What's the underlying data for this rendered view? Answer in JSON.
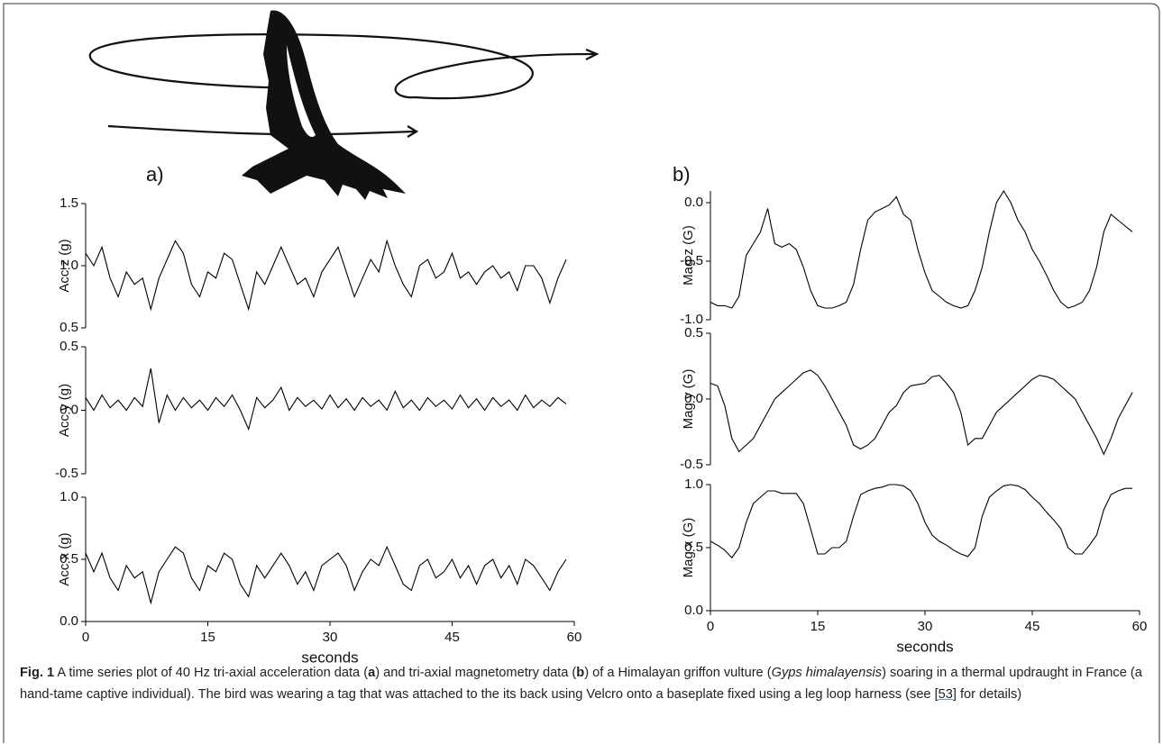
{
  "panel_labels": [
    "a)",
    "b)"
  ],
  "caption": [
    "Fig. 1",
    " A time series plot of 40 Hz tri-axial acceleration data (",
    "a",
    ") and tri-axial magnetometry data (",
    "b",
    ") of a Himalayan griffon vulture (",
    "Gyps himalayensis",
    ") soaring in a thermal updraught in France (a hand-tame captive individual). The bird was wearing a tag that was attached to the its back using Velcro onto a baseplate fixed using a leg loop harness (see ",
    "[53]",
    " for details)"
  ],
  "chart_data": [
    {
      "type": "line",
      "ylabel": "Acc z (g)",
      "color": "#000000",
      "x": [
        0,
        1,
        2,
        3,
        4,
        5,
        6,
        7,
        8,
        9,
        10,
        11,
        12,
        13,
        14,
        15,
        16,
        17,
        18,
        19,
        20,
        21,
        22,
        23,
        24,
        25,
        26,
        27,
        28,
        29,
        30,
        31,
        32,
        33,
        34,
        35,
        36,
        37,
        38,
        39,
        40,
        41,
        42,
        43,
        44,
        45,
        46,
        47,
        48,
        49,
        50,
        51,
        52,
        53,
        54,
        55,
        56,
        57,
        58,
        59
      ],
      "values": [
        1.1,
        1.0,
        1.15,
        0.9,
        0.75,
        0.95,
        0.85,
        0.9,
        0.65,
        0.9,
        1.05,
        1.2,
        1.1,
        0.85,
        0.75,
        0.95,
        0.9,
        1.1,
        1.05,
        0.85,
        0.65,
        0.95,
        0.85,
        1.0,
        1.15,
        1.0,
        0.85,
        0.9,
        0.75,
        0.95,
        1.05,
        1.15,
        0.95,
        0.75,
        0.9,
        1.05,
        0.95,
        1.2,
        1.0,
        0.85,
        0.75,
        1.0,
        1.05,
        0.9,
        0.95,
        1.1,
        0.9,
        0.95,
        0.85,
        0.95,
        1.0,
        0.9,
        0.95,
        0.8,
        1.0,
        1.0,
        0.9,
        0.7,
        0.9,
        1.05
      ],
      "xlim": [
        0,
        60
      ],
      "ylim": [
        0.5,
        1.5
      ],
      "yticks": [
        0.5,
        {
          "value": 1,
          "label": "1.0"
        },
        1.5
      ]
    },
    {
      "type": "line",
      "ylabel": "Acc y (g)",
      "color": "#000000",
      "x": [
        0,
        1,
        2,
        3,
        4,
        5,
        6,
        7,
        8,
        9,
        10,
        11,
        12,
        13,
        14,
        15,
        16,
        17,
        18,
        19,
        20,
        21,
        22,
        23,
        24,
        25,
        26,
        27,
        28,
        29,
        30,
        31,
        32,
        33,
        34,
        35,
        36,
        37,
        38,
        39,
        40,
        41,
        42,
        43,
        44,
        45,
        46,
        47,
        48,
        49,
        50,
        51,
        52,
        53,
        54,
        55,
        56,
        57,
        58,
        59
      ],
      "values": [
        0.1,
        0.0,
        0.12,
        0.02,
        0.08,
        0.0,
        0.1,
        0.03,
        0.33,
        -0.1,
        0.12,
        0.0,
        0.1,
        0.02,
        0.08,
        0.0,
        0.1,
        0.03,
        0.12,
        0.0,
        -0.15,
        0.1,
        0.02,
        0.08,
        0.18,
        0.0,
        0.1,
        0.03,
        0.08,
        0.01,
        0.12,
        0.02,
        0.09,
        0.0,
        0.1,
        0.03,
        0.08,
        0.0,
        0.15,
        0.02,
        0.08,
        0.0,
        0.1,
        0.03,
        0.08,
        0.01,
        0.12,
        0.02,
        0.09,
        0.0,
        0.1,
        0.03,
        0.08,
        0.0,
        0.12,
        0.02,
        0.08,
        0.03,
        0.1,
        0.05
      ],
      "xlim": [
        0,
        60
      ],
      "ylim": [
        -0.5,
        0.5
      ],
      "yticks": [
        -0.5,
        {
          "value": 0,
          "label": "0.0"
        },
        0.5
      ]
    },
    {
      "type": "line",
      "ylabel": "Acc x (g)",
      "xlabel": "seconds",
      "color": "#000000",
      "x": [
        0,
        1,
        2,
        3,
        4,
        5,
        6,
        7,
        8,
        9,
        10,
        11,
        12,
        13,
        14,
        15,
        16,
        17,
        18,
        19,
        20,
        21,
        22,
        23,
        24,
        25,
        26,
        27,
        28,
        29,
        30,
        31,
        32,
        33,
        34,
        35,
        36,
        37,
        38,
        39,
        40,
        41,
        42,
        43,
        44,
        45,
        46,
        47,
        48,
        49,
        50,
        51,
        52,
        53,
        54,
        55,
        56,
        57,
        58,
        59
      ],
      "values": [
        0.55,
        0.4,
        0.55,
        0.35,
        0.25,
        0.45,
        0.35,
        0.4,
        0.15,
        0.4,
        0.5,
        0.6,
        0.55,
        0.35,
        0.25,
        0.45,
        0.4,
        0.55,
        0.5,
        0.3,
        0.2,
        0.45,
        0.35,
        0.45,
        0.55,
        0.45,
        0.3,
        0.4,
        0.25,
        0.45,
        0.5,
        0.55,
        0.45,
        0.25,
        0.4,
        0.5,
        0.45,
        0.6,
        0.45,
        0.3,
        0.25,
        0.45,
        0.5,
        0.35,
        0.4,
        0.5,
        0.35,
        0.45,
        0.3,
        0.45,
        0.5,
        0.35,
        0.45,
        0.3,
        0.5,
        0.45,
        0.35,
        0.25,
        0.4,
        0.5
      ],
      "xlim": [
        0,
        60
      ],
      "xticks": [
        0,
        15,
        30,
        45,
        60
      ],
      "ylim": [
        0,
        1
      ],
      "yticks": [
        {
          "value": 0,
          "label": "0.0"
        },
        0.5,
        {
          "value": 1,
          "label": "1.0"
        }
      ]
    },
    {
      "type": "line",
      "ylabel": "Mag z (G)",
      "color": "#000000",
      "x": [
        0,
        1,
        2,
        3,
        4,
        5,
        6,
        7,
        8,
        9,
        10,
        11,
        12,
        13,
        14,
        15,
        16,
        17,
        18,
        19,
        20,
        21,
        22,
        23,
        24,
        25,
        26,
        27,
        28,
        29,
        30,
        31,
        32,
        33,
        34,
        35,
        36,
        37,
        38,
        39,
        40,
        41,
        42,
        43,
        44,
        45,
        46,
        47,
        48,
        49,
        50,
        51,
        52,
        53,
        54,
        55,
        56,
        57,
        58,
        59
      ],
      "values": [
        -0.85,
        -0.88,
        -0.88,
        -0.9,
        -0.8,
        -0.45,
        -0.35,
        -0.25,
        -0.05,
        -0.35,
        -0.38,
        -0.35,
        -0.4,
        -0.55,
        -0.75,
        -0.88,
        -0.9,
        -0.9,
        -0.88,
        -0.85,
        -0.7,
        -0.4,
        -0.15,
        -0.08,
        -0.05,
        -0.02,
        0.05,
        -0.1,
        -0.15,
        -0.4,
        -0.6,
        -0.75,
        -0.8,
        -0.85,
        -0.88,
        -0.9,
        -0.88,
        -0.75,
        -0.55,
        -0.25,
        0.0,
        0.1,
        0.0,
        -0.15,
        -0.25,
        -0.4,
        -0.5,
        -0.62,
        -0.75,
        -0.85,
        -0.9,
        -0.88,
        -0.85,
        -0.75,
        -0.55,
        -0.25,
        -0.1,
        -0.15,
        -0.2,
        -0.25
      ],
      "xlim": [
        0,
        60
      ],
      "ylim": [
        -1,
        0.1
      ],
      "yticks": [
        {
          "value": -1,
          "label": "-1.0"
        },
        -0.5,
        {
          "value": 0,
          "label": "0.0"
        }
      ]
    },
    {
      "type": "line",
      "ylabel": "Mag y (G)",
      "color": "#000000",
      "x": [
        0,
        1,
        2,
        3,
        4,
        5,
        6,
        7,
        8,
        9,
        10,
        11,
        12,
        13,
        14,
        15,
        16,
        17,
        18,
        19,
        20,
        21,
        22,
        23,
        24,
        25,
        26,
        27,
        28,
        29,
        30,
        31,
        32,
        33,
        34,
        35,
        36,
        37,
        38,
        39,
        40,
        41,
        42,
        43,
        44,
        45,
        46,
        47,
        48,
        49,
        50,
        51,
        52,
        53,
        54,
        55,
        56,
        57,
        58,
        59
      ],
      "values": [
        0.12,
        0.1,
        -0.05,
        -0.3,
        -0.4,
        -0.35,
        -0.3,
        -0.2,
        -0.1,
        0.0,
        0.05,
        0.1,
        0.15,
        0.2,
        0.22,
        0.18,
        0.1,
        0.0,
        -0.1,
        -0.2,
        -0.35,
        -0.38,
        -0.35,
        -0.3,
        -0.2,
        -0.1,
        -0.05,
        0.05,
        0.1,
        0.11,
        0.12,
        0.17,
        0.18,
        0.12,
        0.05,
        -0.1,
        -0.35,
        -0.3,
        -0.3,
        -0.2,
        -0.1,
        -0.05,
        0.0,
        0.05,
        0.1,
        0.15,
        0.18,
        0.17,
        0.15,
        0.1,
        0.05,
        0.0,
        -0.1,
        -0.2,
        -0.3,
        -0.42,
        -0.3,
        -0.15,
        -0.05,
        0.05
      ],
      "xlim": [
        0,
        60
      ],
      "ylim": [
        -0.5,
        0.5
      ],
      "yticks": [
        -0.5,
        {
          "value": 0,
          "label": "0.0"
        },
        0.5
      ]
    },
    {
      "type": "line",
      "ylabel": "Mag x (G)",
      "xlabel": "seconds",
      "color": "#000000",
      "x": [
        0,
        1,
        2,
        3,
        4,
        5,
        6,
        7,
        8,
        9,
        10,
        11,
        12,
        13,
        14,
        15,
        16,
        17,
        18,
        19,
        20,
        21,
        22,
        23,
        24,
        25,
        26,
        27,
        28,
        29,
        30,
        31,
        32,
        33,
        34,
        35,
        36,
        37,
        38,
        39,
        40,
        41,
        42,
        43,
        44,
        45,
        46,
        47,
        48,
        49,
        50,
        51,
        52,
        53,
        54,
        55,
        56,
        57,
        58,
        59
      ],
      "values": [
        0.55,
        0.52,
        0.48,
        0.42,
        0.5,
        0.7,
        0.85,
        0.9,
        0.95,
        0.95,
        0.93,
        0.93,
        0.93,
        0.85,
        0.65,
        0.45,
        0.45,
        0.5,
        0.5,
        0.55,
        0.75,
        0.92,
        0.95,
        0.97,
        0.98,
        1.0,
        1.0,
        0.99,
        0.95,
        0.85,
        0.7,
        0.6,
        0.55,
        0.52,
        0.48,
        0.45,
        0.43,
        0.5,
        0.75,
        0.9,
        0.95,
        0.99,
        1.0,
        0.99,
        0.96,
        0.9,
        0.85,
        0.78,
        0.72,
        0.65,
        0.5,
        0.45,
        0.45,
        0.52,
        0.6,
        0.8,
        0.92,
        0.95,
        0.97,
        0.97
      ],
      "xlim": [
        0,
        60
      ],
      "xticks": [
        0,
        15,
        30,
        45,
        60
      ],
      "ylim": [
        0,
        1
      ],
      "yticks": [
        {
          "value": 0,
          "label": "0.0"
        },
        0.5,
        {
          "value": 1,
          "label": "1.0"
        }
      ]
    }
  ]
}
